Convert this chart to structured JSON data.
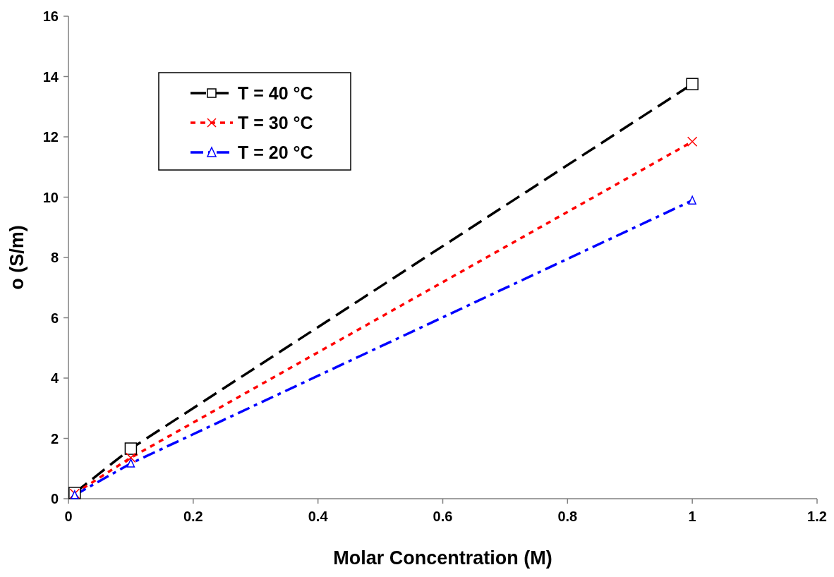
{
  "chart_data": {
    "type": "line",
    "xlabel": "Molar Concentration (M)",
    "ylabel": "o (S/m)",
    "x": [
      0.01,
      0.1,
      1
    ],
    "series": [
      {
        "name": "T = 40 °C",
        "color": "#000000",
        "values": [
          0.19,
          1.66,
          13.75
        ],
        "marker": "square",
        "line_style": "dashed"
      },
      {
        "name": "T = 30 °C",
        "color": "#ff0000",
        "values": [
          0.17,
          1.36,
          11.84
        ],
        "marker": "cross",
        "line_style": "dotted"
      },
      {
        "name": "T = 20 °C",
        "color": "#0000ff",
        "values": [
          0.12,
          1.17,
          9.89
        ],
        "marker": "triangle",
        "line_style": "dashdot"
      }
    ],
    "xlim": [
      0,
      1.2
    ],
    "xticks": [
      0,
      0.2,
      0.4,
      0.6,
      0.8,
      1,
      1.2
    ],
    "ylim": [
      0,
      16
    ],
    "yticks": [
      0,
      2,
      4,
      6,
      8,
      10,
      12,
      14,
      16
    ],
    "legend": "top left",
    "grid": false
  }
}
